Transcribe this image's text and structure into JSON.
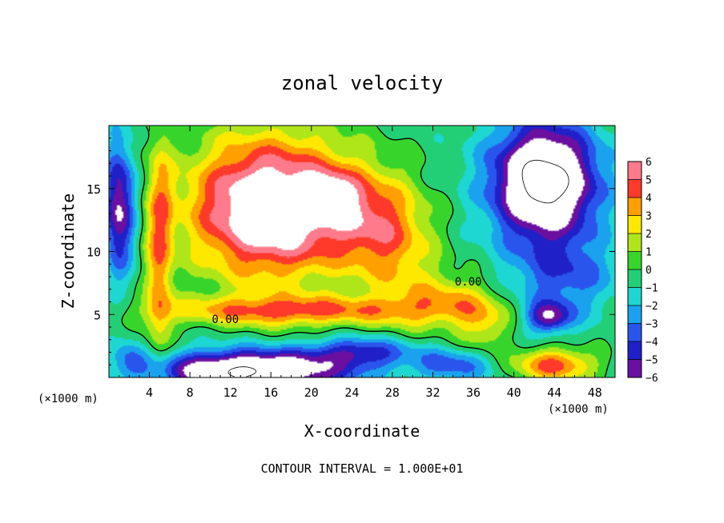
{
  "chart_data": {
    "type": "heatmap",
    "title": "zonal velocity",
    "xlabel": "X-coordinate",
    "ylabel": "Z-coordinate",
    "x_unit": "(×1000 m)",
    "y_unit": "(×1000 m)",
    "footer": "CONTOUR INTERVAL = 1.000E+01",
    "xlim": [
      0,
      50
    ],
    "ylim": [
      0,
      20
    ],
    "x_ticks": [
      4,
      8,
      12,
      16,
      20,
      24,
      28,
      32,
      36,
      40,
      44,
      48
    ],
    "y_ticks": [
      5,
      10,
      15
    ],
    "colorbar": {
      "ticks": [
        6,
        5,
        4,
        3,
        2,
        1,
        0,
        -1,
        -2,
        -3,
        -4,
        -5,
        -6
      ],
      "range": [
        -6,
        6
      ]
    },
    "contour_labels": [
      {
        "text": "0.00",
        "x": 11.5,
        "y": 4.5
      },
      {
        "text": "0.00",
        "x": 35.5,
        "y": 7.5
      }
    ],
    "field": {
      "blobs": [
        {
          "x": 26,
          "y": 12.5,
          "sx": 4.5,
          "sy": 4,
          "a": 3.5
        },
        {
          "x": 29,
          "y": 9,
          "sx": 4,
          "sy": 5,
          "a": 2.2
        },
        {
          "x": 22,
          "y": 14.5,
          "sx": 2.5,
          "sy": 1.8,
          "a": 3
        },
        {
          "x": 34,
          "y": 6,
          "sx": 4.5,
          "sy": 2,
          "a": 3
        },
        {
          "x": 37,
          "y": 4,
          "sx": 2.5,
          "sy": 2,
          "a": 2.5
        },
        {
          "x": 18,
          "y": 5.3,
          "sx": 13,
          "sy": 1.2,
          "a": 4.5
        },
        {
          "x": 5,
          "y": 10,
          "sx": 1.3,
          "sy": 9,
          "a": 4
        },
        {
          "x": 16,
          "y": 13.5,
          "sx": 8,
          "sy": 5.5,
          "a": 9
        },
        {
          "x": 43,
          "y": 15.5,
          "sx": 5,
          "sy": 4.5,
          "a": -10
        },
        {
          "x": 45,
          "y": 8,
          "sx": 5,
          "sy": 3,
          "a": -3
        },
        {
          "x": 43.5,
          "y": 4.8,
          "sx": 2.2,
          "sy": 1.2,
          "a": -5
        },
        {
          "x": 1,
          "y": 13.5,
          "sx": 1.5,
          "sy": 5,
          "a": -6
        },
        {
          "x": 14,
          "y": 0.5,
          "sx": 9,
          "sy": 1.6,
          "a": -9
        },
        {
          "x": 25,
          "y": 2,
          "sx": 5,
          "sy": 1.2,
          "a": -4
        },
        {
          "x": 34,
          "y": 1,
          "sx": 4,
          "sy": 1.3,
          "a": -3
        },
        {
          "x": 44,
          "y": 1,
          "sx": 4,
          "sy": 1.3,
          "a": 5
        },
        {
          "x": 2,
          "y": 1.5,
          "sx": 1.5,
          "sy": 1.5,
          "a": -2
        }
      ],
      "bias": -0.5,
      "noise": 0.6
    }
  }
}
